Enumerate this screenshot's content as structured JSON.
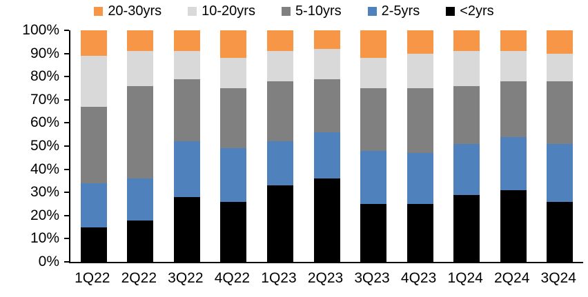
{
  "chart_data": {
    "type": "bar",
    "stacked": true,
    "orientation": "vertical",
    "title": "",
    "xlabel": "",
    "ylabel": "",
    "grid": false,
    "legend_position": "top",
    "legend_order": [
      "20-30yrs",
      "10-20yrs",
      "5-10yrs",
      "2-5yrs",
      "<2yrs"
    ],
    "categories": [
      "1Q22",
      "2Q22",
      "3Q22",
      "4Q22",
      "1Q23",
      "2Q23",
      "3Q23",
      "4Q23",
      "1Q24",
      "2Q24",
      "3Q24"
    ],
    "series": [
      {
        "name": "<2yrs",
        "color": "#000000",
        "values": [
          15,
          18,
          28,
          26,
          33,
          36,
          25,
          25,
          29,
          31,
          26
        ]
      },
      {
        "name": "2-5yrs",
        "color": "#4F81BD",
        "values": [
          19,
          18,
          24,
          23,
          19,
          20,
          23,
          22,
          22,
          23,
          25
        ]
      },
      {
        "name": "5-10yrs",
        "color": "#808080",
        "values": [
          33,
          40,
          27,
          26,
          26,
          23,
          27,
          28,
          25,
          24,
          27
        ]
      },
      {
        "name": "10-20yrs",
        "color": "#D9D9D9",
        "values": [
          22,
          15,
          12,
          13,
          13,
          13,
          13,
          15,
          15,
          13,
          12
        ]
      },
      {
        "name": "20-30yrs",
        "color": "#F79646",
        "values": [
          11,
          9,
          9,
          12,
          9,
          8,
          12,
          10,
          9,
          9,
          10
        ]
      }
    ],
    "ylim": [
      0,
      100
    ],
    "ytick_step": 10,
    "ytick_labels": [
      "0%",
      "10%",
      "20%",
      "30%",
      "40%",
      "50%",
      "60%",
      "70%",
      "80%",
      "90%",
      "100%"
    ]
  },
  "colors": {
    "axis": "#000000",
    "background": "#FFFFFF"
  }
}
